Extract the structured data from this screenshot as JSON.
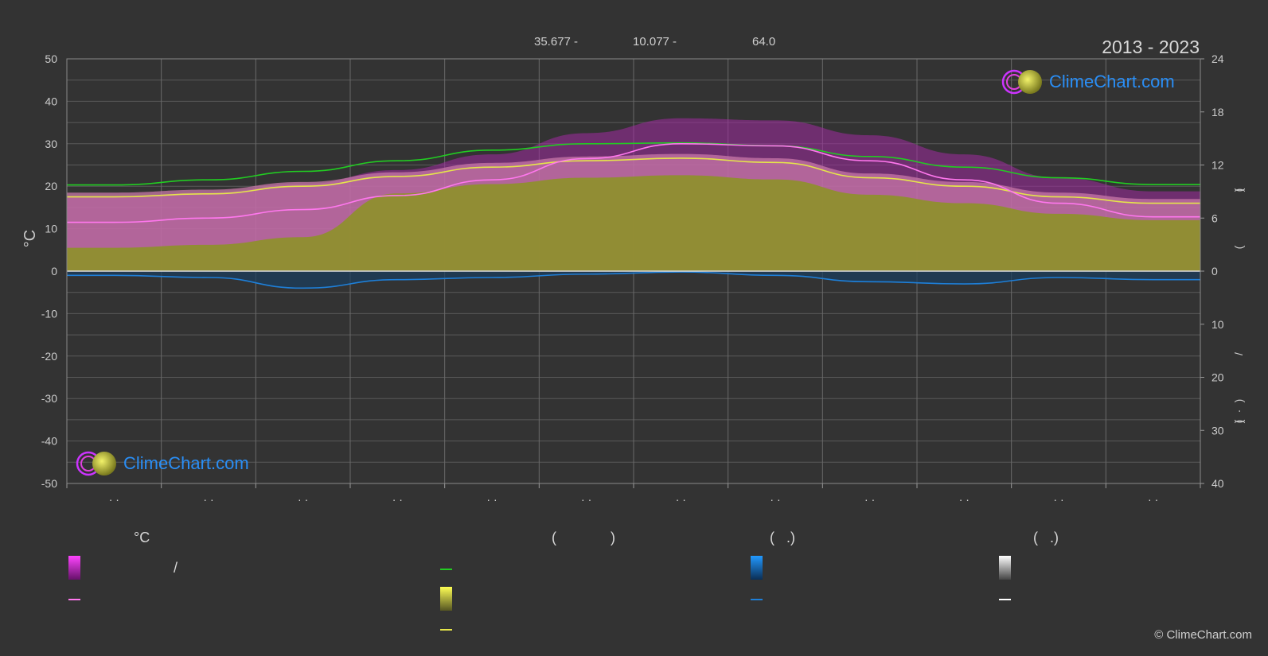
{
  "header": {
    "coords_lat": "35.677 -",
    "coords_lon": "10.077 -",
    "elevation": "64.0",
    "period": "2013 - 2023"
  },
  "copyright": "© ClimeChart.com",
  "logos": {
    "text": "ClimeChart.com"
  },
  "chart_data": {
    "type": "area",
    "left_axis": {
      "label": "°C",
      "ylim": [
        -50,
        50
      ],
      "ticks": [
        "50",
        "40",
        "30",
        "20",
        "10",
        "0",
        "-10",
        "-20",
        "-30",
        "-40",
        "-50"
      ]
    },
    "right_axis_upper": {
      "ylim": [
        0,
        24
      ],
      "ticks": [
        "24",
        "18",
        "12",
        "6",
        "0"
      ]
    },
    "right_axis_lower": {
      "ylim": [
        0,
        40
      ],
      "ticks": [
        "10",
        "20",
        "30",
        "40"
      ]
    },
    "right_axis_fragments": [
      "(",
      ")",
      "(",
      "/",
      ")",
      "(",
      "·",
      ")"
    ],
    "x_tick_labels": [
      "· ·",
      "· ·",
      "· ·",
      "· ·",
      "· ·",
      "· ·",
      "· ·",
      "· ·",
      "· ·",
      "· ·",
      "· ·",
      "· ·"
    ],
    "months": 12,
    "series": [
      {
        "values": [
          20.3,
          21.5,
          23.5,
          26.0,
          28.5,
          30.0,
          30.2,
          29.5,
          27.0,
          24.5,
          22.0,
          20.4
        ]
      },
      {
        "values": [
          17.5,
          18.2,
          20.0,
          22.3,
          24.5,
          26.0,
          26.6,
          25.6,
          22.0,
          20.0,
          17.5,
          16.0
        ]
      },
      {
        "values": [
          11.5,
          12.5,
          14.5,
          17.8,
          21.5,
          26.5,
          30.0,
          29.5,
          26.0,
          21.5,
          16.0,
          12.8
        ]
      },
      {
        "values": [
          -1.0,
          -1.5,
          -4.0,
          -2.0,
          -1.5,
          -0.7,
          -0.2,
          -1.0,
          -2.5,
          -3.0,
          -1.5,
          -2.0
        ]
      }
    ]
  },
  "legend": {
    "col1_header": "°C",
    "col2_header_open": "(",
    "col2_header_close": ")",
    "col3_header": "(   .)",
    "col4_header": "(   .)",
    "row1_slash": "/",
    "colors": {
      "magenta": "#e040e0",
      "pink": "#ff77ee",
      "green": "#22cc22",
      "yellow": "#e5e54a",
      "blue": "#1e7fd8",
      "white": "#ffffff"
    }
  }
}
